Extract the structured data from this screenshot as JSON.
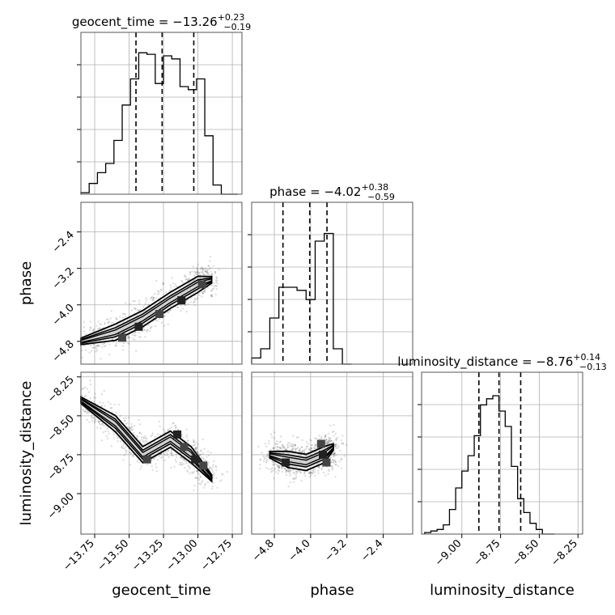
{
  "chart_data": [
    {
      "type": "histogram",
      "parameter": "geocent_time",
      "title_prefix": "geocent_time = ",
      "median": "−13.26",
      "plus": "+0.23",
      "minus": "−0.19",
      "xlim": [
        -13.85,
        -12.68
      ],
      "bins": [
        -13.85,
        -13.79,
        -13.73,
        -13.67,
        -13.61,
        -13.55,
        -13.49,
        -13.43,
        -13.37,
        -13.31,
        -13.25,
        -13.19,
        -13.13,
        -13.07,
        -13.01,
        -12.95,
        -12.89,
        -12.83,
        -12.77,
        -12.71
      ],
      "counts": [
        0.01,
        0.07,
        0.14,
        0.2,
        0.35,
        0.58,
        0.75,
        0.92,
        0.91,
        0.72,
        0.9,
        0.88,
        0.7,
        0.68,
        0.75,
        0.38,
        0.06,
        0.0,
        0.0
      ],
      "quantiles": [
        -13.45,
        -13.26,
        -13.03
      ]
    },
    {
      "type": "histogram",
      "parameter": "phase",
      "title_prefix": "phase = ",
      "median": "−4.02",
      "plus": "+0.38",
      "minus": "−0.59",
      "xlim": [
        -5.3,
        -1.75
      ],
      "bins": [
        -5.3,
        -5.1,
        -4.9,
        -4.7,
        -4.5,
        -4.3,
        -4.1,
        -3.9,
        -3.7,
        -3.5,
        -3.3,
        -3.1
      ],
      "counts": [
        0.04,
        0.1,
        0.3,
        0.5,
        0.5,
        0.48,
        0.42,
        0.8,
        0.85,
        0.1,
        0.0
      ],
      "quantiles": [
        -4.61,
        -4.02,
        -3.64
      ]
    },
    {
      "type": "histogram",
      "parameter": "luminosity_distance",
      "title_prefix": "luminosity_distance = ",
      "median": "−8.76",
      "plus": "+0.14",
      "minus": "−0.13",
      "xlim": [
        -9.26,
        -8.22
      ],
      "bins": [
        -9.24,
        -9.2,
        -9.16,
        -9.12,
        -9.08,
        -9.04,
        -9.0,
        -8.96,
        -8.92,
        -8.88,
        -8.84,
        -8.8,
        -8.76,
        -8.72,
        -8.68,
        -8.64,
        -8.6,
        -8.56,
        -8.52,
        -8.48,
        -8.44,
        -8.4
      ],
      "counts": [
        0.01,
        0.02,
        0.03,
        0.06,
        0.16,
        0.3,
        0.41,
        0.51,
        0.64,
        0.84,
        0.88,
        0.9,
        0.8,
        0.7,
        0.44,
        0.23,
        0.14,
        0.07,
        0.03,
        0.0,
        0.0
      ],
      "quantiles": [
        -8.89,
        -8.76,
        -8.62
      ]
    },
    {
      "type": "scatter",
      "x_param": "geocent_time",
      "y_param": "phase",
      "xlim": [
        -13.85,
        -12.68
      ],
      "ylim": [
        -5.3,
        -1.75
      ],
      "cloud_centerline": [
        [
          -13.85,
          -4.8
        ],
        [
          -13.6,
          -4.6
        ],
        [
          -13.4,
          -4.3
        ],
        [
          -13.2,
          -3.9
        ],
        [
          -13.0,
          -3.55
        ],
        [
          -12.9,
          -3.45
        ]
      ],
      "contour_points": [
        [
          -13.55,
          -4.72
        ],
        [
          -13.43,
          -4.48
        ],
        [
          -13.28,
          -4.2
        ],
        [
          -13.12,
          -3.9
        ],
        [
          -12.97,
          -3.55
        ]
      ]
    },
    {
      "type": "scatter",
      "x_param": "geocent_time",
      "y_param": "luminosity_distance",
      "xlim": [
        -13.85,
        -12.68
      ],
      "ylim": [
        -9.26,
        -8.22
      ],
      "cloud_centerline": [
        [
          -13.85,
          -8.4
        ],
        [
          -13.6,
          -8.55
        ],
        [
          -13.4,
          -8.75
        ],
        [
          -13.2,
          -8.65
        ],
        [
          -13.05,
          -8.75
        ],
        [
          -12.9,
          -8.9
        ]
      ],
      "contour_points": [
        [
          -13.37,
          -8.78
        ],
        [
          -13.15,
          -8.62
        ],
        [
          -13.1,
          -8.7
        ],
        [
          -13.02,
          -8.78
        ],
        [
          -12.96,
          -8.82
        ]
      ]
    },
    {
      "type": "scatter",
      "x_param": "phase",
      "y_param": "luminosity_distance",
      "xlim": [
        -5.3,
        -1.75
      ],
      "ylim": [
        -9.26,
        -8.22
      ],
      "cloud_centerline": [
        [
          -4.9,
          -8.75
        ],
        [
          -4.5,
          -8.78
        ],
        [
          -4.1,
          -8.8
        ],
        [
          -3.7,
          -8.75
        ],
        [
          -3.5,
          -8.7
        ]
      ],
      "contour_points": [
        [
          -3.77,
          -8.68
        ],
        [
          -3.73,
          -8.75
        ],
        [
          -3.65,
          -8.8
        ],
        [
          -4.55,
          -8.8
        ]
      ]
    }
  ],
  "axes": {
    "geocent_time": {
      "label": "geocent_time",
      "ticks": [
        -13.75,
        -13.5,
        -13.25,
        -13.0,
        -12.75
      ],
      "tick_labels": [
        "−13.75",
        "−13.50",
        "−13.25",
        "−13.00",
        "−12.75"
      ]
    },
    "phase": {
      "label": "phase",
      "ticks": [
        -4.8,
        -4.0,
        -3.2,
        -2.4
      ],
      "tick_labels": [
        "−4.8",
        "−4.0",
        "−3.2",
        "−2.4"
      ]
    },
    "luminosity_distance": {
      "label": "luminosity_distance",
      "ticks": [
        -9.0,
        -8.75,
        -8.5,
        -8.25
      ],
      "tick_labels": [
        "−9.00",
        "−8.75",
        "−8.50",
        "−8.25"
      ]
    }
  },
  "colors": {
    "hist": "#000000",
    "scatter": "#333333",
    "grid": "#b0b0b0",
    "frame": "#555555"
  }
}
